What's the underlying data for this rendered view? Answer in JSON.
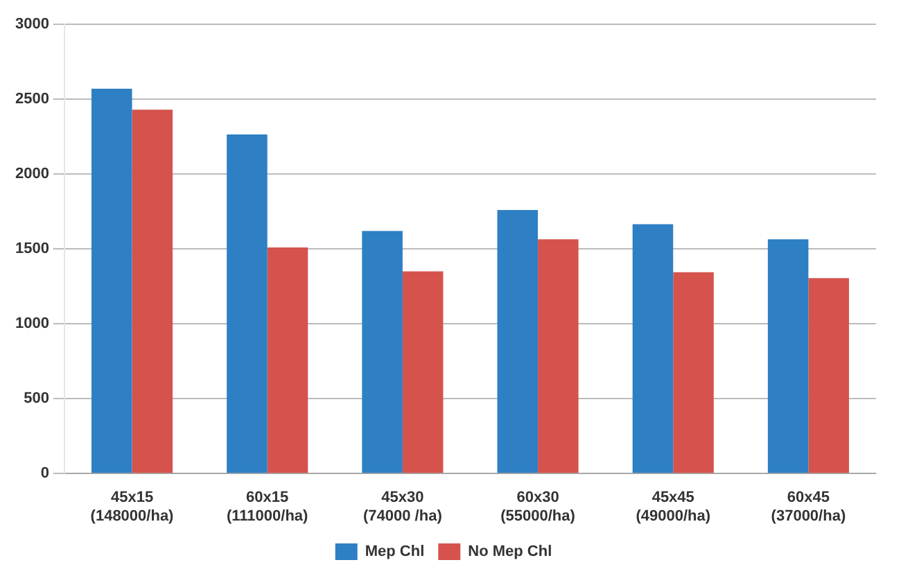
{
  "chart_data": {
    "type": "bar",
    "categories": [
      "45x15\n(148000/ha)",
      "60x15\n(111000/ha)",
      "45x30\n(74000 /ha)",
      "60x30\n(55000/ha)",
      "45x45\n(49000/ha)",
      "60x45\n(37000/ha)"
    ],
    "series": [
      {
        "name": "Mep Chl",
        "color": "#2e7fc4",
        "values": [
          2570,
          2265,
          1620,
          1760,
          1665,
          1565
        ]
      },
      {
        "name": "No Mep Chl",
        "color": "#d5534c",
        "values": [
          2430,
          1510,
          1350,
          1565,
          1345,
          1305
        ]
      }
    ],
    "ylim": [
      0,
      3000
    ],
    "yticks": [
      0,
      500,
      1000,
      1500,
      2000,
      2500,
      3000
    ],
    "grid": "y",
    "legend": "bottom"
  }
}
